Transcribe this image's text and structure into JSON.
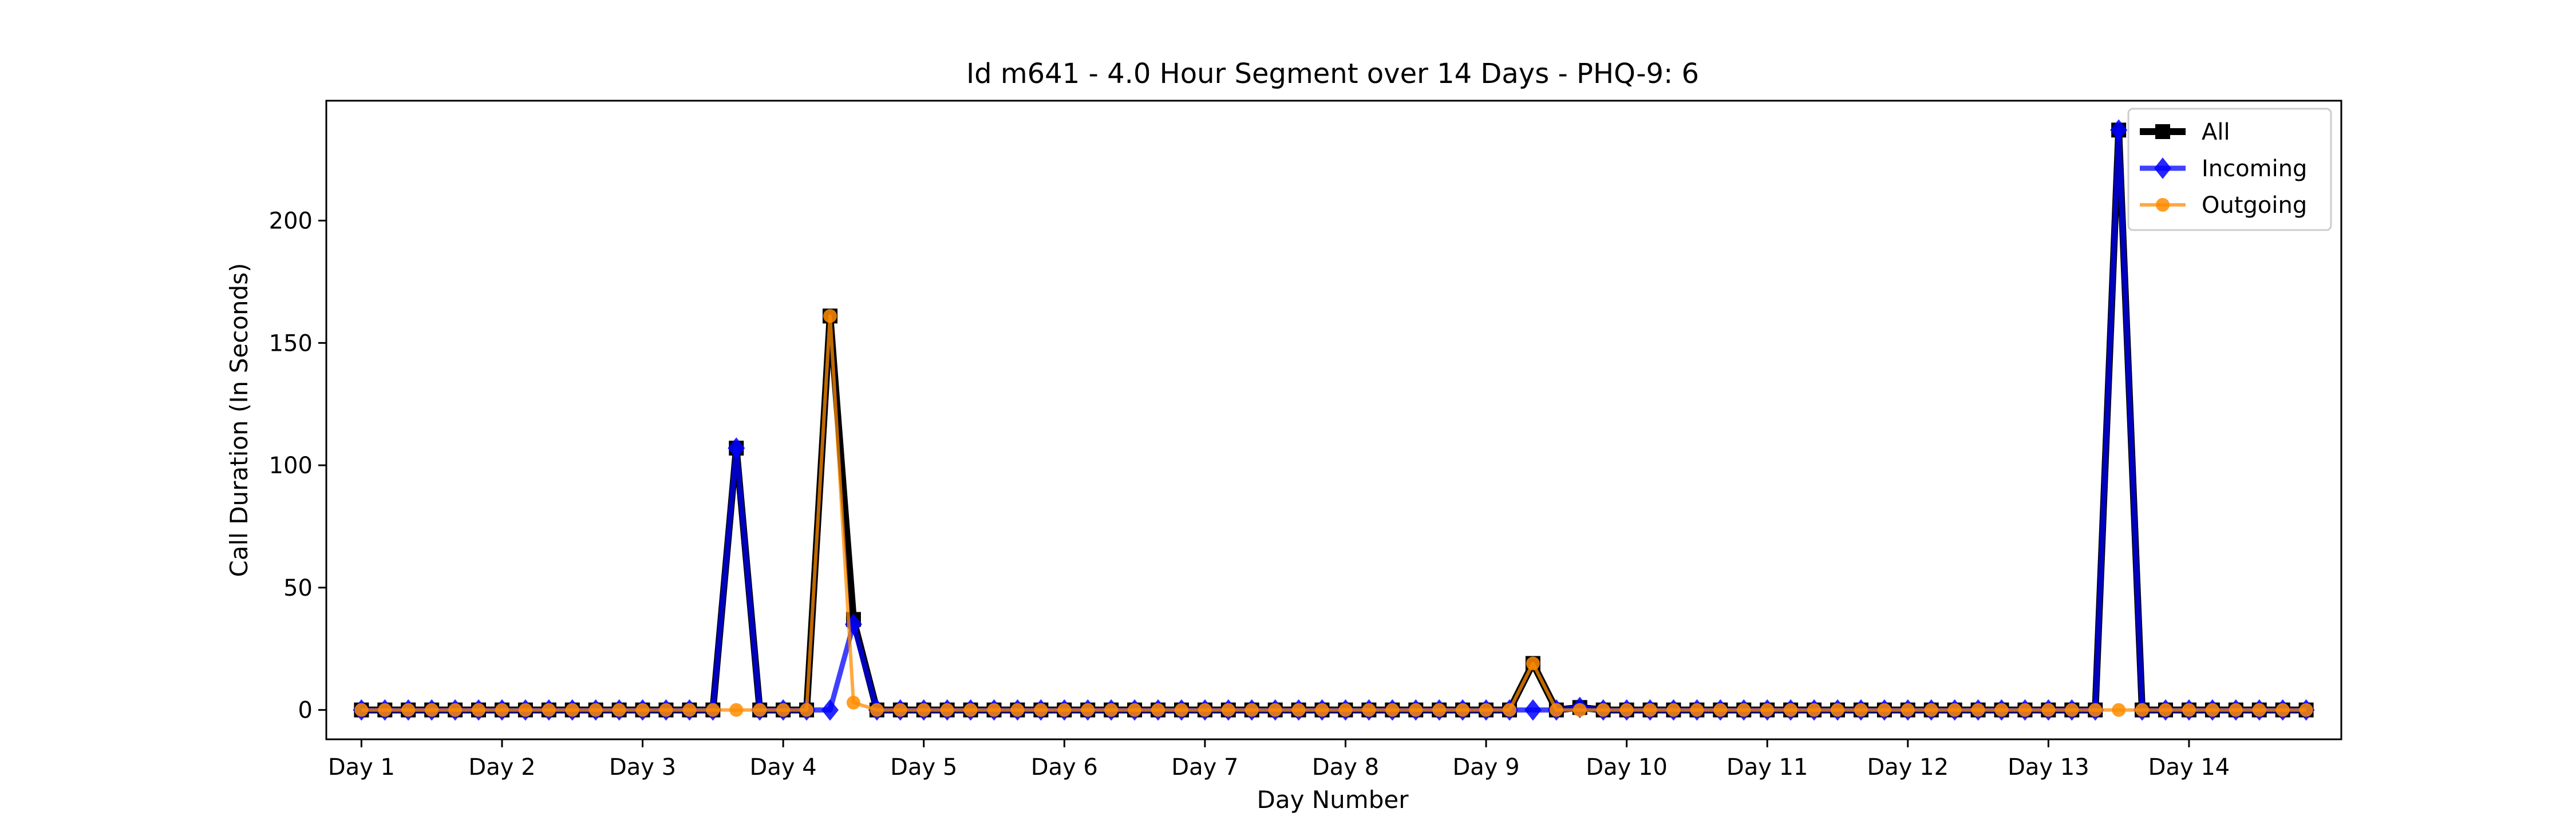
{
  "chart_data": {
    "type": "line",
    "title": "Id m641 - 4.0 Hour Segment over 14 Days - PHQ-9: 6",
    "xlabel": "Day Number",
    "ylabel": "Call Duration (In Seconds)",
    "ylim": [
      -12,
      249
    ],
    "yticks": [
      0,
      50,
      100,
      150,
      200
    ],
    "xlim": [
      -1.5,
      84.5
    ],
    "categories": [
      "Day 1",
      "Day 2",
      "Day 3",
      "Day 4",
      "Day 5",
      "Day 6",
      "Day 7",
      "Day 8",
      "Day 9",
      "Day 10",
      "Day 11",
      "Day 12",
      "Day 13",
      "Day 14"
    ],
    "category_positions": [
      0,
      6,
      12,
      18,
      24,
      30,
      36,
      42,
      48,
      54,
      60,
      66,
      72,
      78
    ],
    "grid": false,
    "legend_position": "top-right",
    "series": [
      {
        "name": "All",
        "color": "#000000",
        "marker": "square",
        "nonzero": {
          "16": 107,
          "20": 161,
          "21": 37,
          "50": 19,
          "52": 1,
          "75": 237
        }
      },
      {
        "name": "Incoming",
        "color": "#0000ff",
        "marker": "diamond",
        "nonzero": {
          "16": 107,
          "21": 35,
          "52": 1,
          "75": 237
        }
      },
      {
        "name": "Outgoing",
        "color": "#ff8c00",
        "marker": "circle",
        "nonzero": {
          "20": 161,
          "21": 3,
          "50": 19
        }
      }
    ],
    "point_count": 84
  }
}
